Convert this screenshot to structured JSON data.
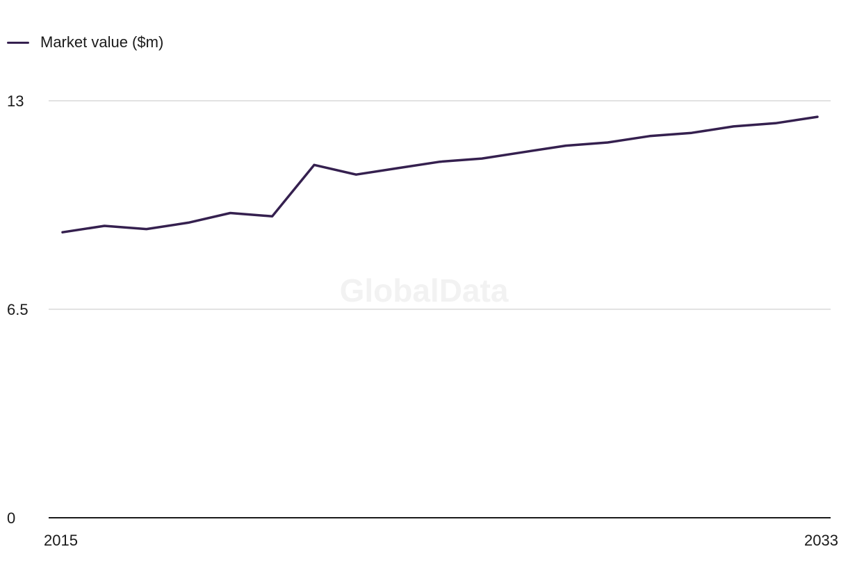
{
  "legend": {
    "label": "Market value ($m)",
    "color": "#35204f"
  },
  "watermark": "GlobalData",
  "chart_data": {
    "type": "line",
    "x": [
      2015,
      2016,
      2017,
      2018,
      2019,
      2020,
      2021,
      2022,
      2023,
      2024,
      2025,
      2026,
      2027,
      2028,
      2029,
      2030,
      2031,
      2032,
      2033
    ],
    "series": [
      {
        "name": "Market value ($m)",
        "color": "#35204f",
        "values": [
          8.9,
          9.1,
          9.0,
          9.2,
          9.5,
          9.4,
          11.0,
          10.7,
          10.9,
          11.1,
          11.2,
          11.4,
          11.6,
          11.7,
          11.9,
          12.0,
          12.2,
          12.3,
          12.5
        ]
      }
    ],
    "ylim": [
      0,
      13
    ],
    "yticks": [
      {
        "value": 0,
        "label": "0"
      },
      {
        "value": 6.5,
        "label": "6.5"
      },
      {
        "value": 13,
        "label": "13"
      }
    ],
    "xtick_labels": [
      {
        "value": 2015,
        "label": "2015"
      },
      {
        "value": 2033,
        "label": "2033"
      }
    ],
    "grid": true,
    "legend_position": "top-left"
  }
}
